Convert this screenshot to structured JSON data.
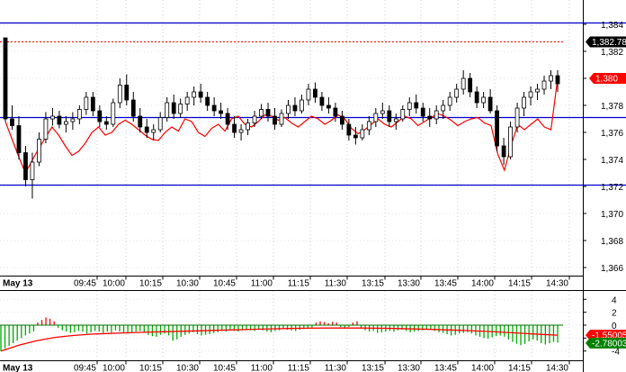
{
  "chart_data": [
    {
      "type": "candlestick",
      "date_label": "May 13",
      "x_ticks": [
        "09:45",
        "10:00",
        "10:15",
        "10:30",
        "10:45",
        "11:00",
        "11:15",
        "11:30",
        "13:15",
        "13:30",
        "13:45",
        "14:00",
        "14:15",
        "14:30"
      ],
      "y_ticks": [
        "1,384",
        "1,382",
        "1,380",
        "1,378",
        "1,376",
        "1,374",
        "1,372",
        "1,370",
        "1,368",
        "1,366"
      ],
      "ylim": [
        1.3654,
        1.3858
      ],
      "horizontal_lines": [
        1.3841,
        1.3771,
        1.3721
      ],
      "last_price_line": 1.3827,
      "price_tag": {
        "label": "1,382.78",
        "value": 1.3827,
        "color": "#000000"
      },
      "overlay_tag": {
        "label": "1,380",
        "value": 1.38,
        "color": "#ff0000"
      },
      "overlay_series": [
        1.3768,
        1.3755,
        1.3742,
        1.373,
        1.3739,
        1.3748,
        1.3756,
        1.3764,
        1.3758,
        1.375,
        1.3743,
        1.3746,
        1.3752,
        1.376,
        1.3764,
        1.3758,
        1.376,
        1.3766,
        1.3769,
        1.3766,
        1.3762,
        1.3758,
        1.3755,
        1.3754,
        1.376,
        1.3764,
        1.3761,
        1.377,
        1.3768,
        1.376,
        1.3757,
        1.3763,
        1.3766,
        1.3761,
        1.377,
        1.3772,
        1.3766,
        1.3764,
        1.3768,
        1.3773,
        1.3772,
        1.3769,
        1.3771,
        1.3767,
        1.3764,
        1.3768,
        1.3772,
        1.377,
        1.3766,
        1.3769,
        1.3773,
        1.377,
        1.3763,
        1.3759,
        1.3762,
        1.3766,
        1.377,
        1.3766,
        1.3764,
        1.3768,
        1.3772,
        1.377,
        1.3765,
        1.3768,
        1.3771,
        1.3774,
        1.3772,
        1.3769,
        1.3765,
        1.3768,
        1.377,
        1.3771,
        1.3767,
        1.3765,
        1.3744,
        1.3732,
        1.375,
        1.3766,
        1.3762,
        1.3766,
        1.377,
        1.3764,
        1.3762,
        1.38
      ],
      "candles": [
        [
          1.383,
          1.383,
          1.3768,
          1.377
        ],
        [
          1.377,
          1.378,
          1.3762,
          1.3765
        ],
        [
          1.3765,
          1.3772,
          1.374,
          1.3745
        ],
        [
          1.3745,
          1.375,
          1.372,
          1.3725
        ],
        [
          1.3725,
          1.3745,
          1.3711,
          1.3738
        ],
        [
          1.3738,
          1.376,
          1.3735,
          1.3755
        ],
        [
          1.3755,
          1.3775,
          1.3752,
          1.377
        ],
        [
          1.377,
          1.3778,
          1.3765,
          1.3772
        ],
        [
          1.3772,
          1.3776,
          1.3763,
          1.3766
        ],
        [
          1.3766,
          1.3772,
          1.376,
          1.3768
        ],
        [
          1.3768,
          1.3775,
          1.3762,
          1.377
        ],
        [
          1.377,
          1.378,
          1.3766,
          1.3777
        ],
        [
          1.3777,
          1.379,
          1.3773,
          1.3786
        ],
        [
          1.3786,
          1.379,
          1.3772,
          1.3776
        ],
        [
          1.3776,
          1.378,
          1.3764,
          1.3768
        ],
        [
          1.3768,
          1.3772,
          1.3762,
          1.3766
        ],
        [
          1.3766,
          1.3785,
          1.3764,
          1.3782
        ],
        [
          1.3782,
          1.38,
          1.3778,
          1.3795
        ],
        [
          1.3795,
          1.3803,
          1.378,
          1.3784
        ],
        [
          1.3784,
          1.379,
          1.3768,
          1.3772
        ],
        [
          1.3772,
          1.3778,
          1.376,
          1.3764
        ],
        [
          1.3764,
          1.377,
          1.3756,
          1.376
        ],
        [
          1.376,
          1.3766,
          1.3754,
          1.3762
        ],
        [
          1.3762,
          1.3775,
          1.376,
          1.3771
        ],
        [
          1.3771,
          1.3786,
          1.3768,
          1.3782
        ],
        [
          1.3782,
          1.3788,
          1.377,
          1.3774
        ],
        [
          1.3774,
          1.3785,
          1.3771,
          1.3781
        ],
        [
          1.3781,
          1.379,
          1.3776,
          1.3786
        ],
        [
          1.3786,
          1.3794,
          1.378,
          1.379
        ],
        [
          1.379,
          1.3796,
          1.3782,
          1.3786
        ],
        [
          1.3786,
          1.379,
          1.3776,
          1.378
        ],
        [
          1.378,
          1.3786,
          1.3772,
          1.3776
        ],
        [
          1.3776,
          1.3782,
          1.377,
          1.3774
        ],
        [
          1.3774,
          1.3778,
          1.3762,
          1.3766
        ],
        [
          1.3766,
          1.3772,
          1.3756,
          1.376
        ],
        [
          1.376,
          1.3766,
          1.3754,
          1.3762
        ],
        [
          1.3762,
          1.377,
          1.3758,
          1.3767
        ],
        [
          1.3767,
          1.3776,
          1.3764,
          1.3772
        ],
        [
          1.3772,
          1.3781,
          1.377,
          1.3777
        ],
        [
          1.3777,
          1.3782,
          1.3768,
          1.3772
        ],
        [
          1.3772,
          1.3778,
          1.3762,
          1.3766
        ],
        [
          1.3766,
          1.3777,
          1.3764,
          1.3774
        ],
        [
          1.3774,
          1.3784,
          1.377,
          1.378
        ],
        [
          1.378,
          1.3786,
          1.3772,
          1.3776
        ],
        [
          1.3776,
          1.3788,
          1.3774,
          1.3784
        ],
        [
          1.3784,
          1.3796,
          1.378,
          1.3792
        ],
        [
          1.3792,
          1.3797,
          1.3782,
          1.3786
        ],
        [
          1.3786,
          1.379,
          1.3776,
          1.378
        ],
        [
          1.378,
          1.3786,
          1.3774,
          1.3778
        ],
        [
          1.3778,
          1.3782,
          1.3768,
          1.3772
        ],
        [
          1.3772,
          1.3776,
          1.3762,
          1.3766
        ],
        [
          1.3766,
          1.377,
          1.3754,
          1.3758
        ],
        [
          1.3758,
          1.3764,
          1.3751,
          1.3756
        ],
        [
          1.3756,
          1.3766,
          1.3754,
          1.3762
        ],
        [
          1.3762,
          1.3772,
          1.3758,
          1.3768
        ],
        [
          1.3768,
          1.3778,
          1.3764,
          1.3774
        ],
        [
          1.3774,
          1.3782,
          1.377,
          1.3776
        ],
        [
          1.3776,
          1.378,
          1.3764,
          1.3768
        ],
        [
          1.3768,
          1.3774,
          1.3762,
          1.377
        ],
        [
          1.377,
          1.378,
          1.3768,
          1.3777
        ],
        [
          1.3777,
          1.3786,
          1.3772,
          1.3782
        ],
        [
          1.3782,
          1.3788,
          1.3774,
          1.3778
        ],
        [
          1.3778,
          1.3782,
          1.3768,
          1.3772
        ],
        [
          1.3772,
          1.3778,
          1.3764,
          1.377
        ],
        [
          1.377,
          1.378,
          1.3766,
          1.3776
        ],
        [
          1.3776,
          1.3784,
          1.377,
          1.378
        ],
        [
          1.378,
          1.379,
          1.3776,
          1.3786
        ],
        [
          1.3786,
          1.3796,
          1.3782,
          1.3792
        ],
        [
          1.3792,
          1.3806,
          1.3788,
          1.38
        ],
        [
          1.38,
          1.3804,
          1.3786,
          1.379
        ],
        [
          1.379,
          1.3794,
          1.3778,
          1.3782
        ],
        [
          1.3782,
          1.379,
          1.3778,
          1.3786
        ],
        [
          1.3786,
          1.3792,
          1.3774,
          1.3776
        ],
        [
          1.3776,
          1.378,
          1.3746,
          1.375
        ],
        [
          1.375,
          1.3756,
          1.3736,
          1.3742
        ],
        [
          1.3742,
          1.3768,
          1.374,
          1.3764
        ],
        [
          1.3764,
          1.3782,
          1.376,
          1.3778
        ],
        [
          1.3778,
          1.379,
          1.3772,
          1.3786
        ],
        [
          1.3786,
          1.3794,
          1.378,
          1.379
        ],
        [
          1.379,
          1.3796,
          1.3784,
          1.3792
        ],
        [
          1.3792,
          1.3802,
          1.3788,
          1.3798
        ],
        [
          1.3798,
          1.3806,
          1.3792,
          1.3802
        ],
        [
          1.3802,
          1.3806,
          1.379,
          1.3796
        ]
      ]
    },
    {
      "type": "histogram",
      "date_label": "May 13",
      "x_ticks": [
        "09:45",
        "10:00",
        "10:15",
        "10:30",
        "10:45",
        "11:00",
        "11:15",
        "11:30",
        "13:15",
        "13:30",
        "13:45",
        "14:00",
        "14:15",
        "14:30"
      ],
      "y_ticks": [
        "4",
        "2",
        "0",
        "-2",
        "-4"
      ],
      "ylim": [
        -5.3,
        5.3
      ],
      "tags": [
        {
          "label": "-1.55005",
          "value": -1.55,
          "color": "#ff0000"
        },
        {
          "label": "-2.78003",
          "value": -2.78,
          "color": "#008000"
        }
      ],
      "bars": [
        -4.0,
        -3.6,
        -3.2,
        -2.8,
        -2.4,
        -2.0,
        -1.6,
        -1.3,
        -1.0,
        0.4,
        0.8,
        1.2,
        1.0,
        0.6,
        -0.4,
        -0.8,
        -1.0,
        -1.2,
        -1.1,
        -0.9,
        -1.0,
        -1.3,
        -1.1,
        -0.9,
        -1.0,
        -1.2,
        -1.0,
        -1.1,
        -0.8,
        -1.0,
        -1.2,
        -1.3,
        -1.1,
        -1.0,
        -0.9,
        -1.2,
        -1.5,
        -1.7,
        -1.8,
        -1.5,
        -1.3,
        -1.6,
        -2.4,
        -2.2,
        -1.8,
        -1.5,
        -1.3,
        -1.1,
        -1.4,
        -1.6,
        -1.5,
        -1.4,
        -1.2,
        -1.1,
        -0.9,
        -1.0,
        -0.8,
        -0.9,
        -1.0,
        -0.8,
        -0.7,
        -0.8,
        -0.9,
        -0.7,
        -0.8,
        -1.0,
        -1.1,
        -0.9,
        -0.8,
        -0.6,
        -0.7,
        -0.8,
        -0.9,
        -0.7,
        -0.6,
        -0.5,
        -0.4,
        0.4,
        0.6,
        0.5,
        0.3,
        0.5,
        0.4,
        -0.3,
        -0.5,
        -0.3,
        0.4,
        0.6,
        -0.4,
        -0.8,
        -1.0,
        -0.9,
        -1.2,
        -1.1,
        -1.0,
        -0.9,
        -1.0,
        -0.8,
        -0.7,
        -0.9,
        -1.1,
        -1.0,
        -0.9,
        -0.8,
        -0.6,
        -0.7,
        -0.9,
        -1.1,
        -1.2,
        -1.4,
        -1.6,
        -1.5,
        -1.3,
        -1.2,
        -1.1,
        -1.3,
        -1.6,
        -1.8,
        -2.0,
        -2.1,
        -1.9,
        -1.7,
        -1.6,
        -1.8,
        -2.2,
        -2.6,
        -2.9,
        -3.1,
        -2.9,
        -2.5,
        -2.2,
        -2.4,
        -2.8,
        -3.0,
        -2.8,
        -2.6,
        -2.7
      ],
      "signal_line": [
        -4.0,
        -3.1,
        -2.4,
        -1.9,
        -1.6,
        -1.4,
        -1.28,
        -1.18,
        -1.1,
        -1.02,
        -0.95,
        -0.88,
        -0.8,
        -0.72,
        -0.64,
        -0.57,
        -0.52,
        -0.48,
        -0.45,
        -0.44,
        -0.45,
        -0.48,
        -0.52,
        -0.58,
        -0.66,
        -0.74,
        -0.84,
        -0.96,
        -1.1,
        -1.25,
        -1.42,
        -1.55
      ]
    }
  ]
}
